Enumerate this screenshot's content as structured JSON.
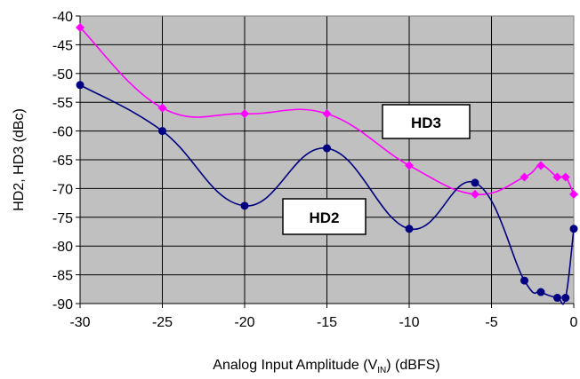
{
  "chart_data": {
    "type": "line",
    "title": "",
    "xlabel": "Analog Input Amplitude (V",
    "xlabel_sub": "IN",
    "xlabel_suffix": ") (dBFS)",
    "ylabel": "HD2, HD3 (dBc)",
    "xlim": [
      -30,
      0
    ],
    "ylim": [
      -90,
      -40
    ],
    "xticks": [
      -30,
      -25,
      -20,
      -15,
      -10,
      -5,
      0
    ],
    "yticks": [
      -40,
      -45,
      -50,
      -55,
      -60,
      -65,
      -70,
      -75,
      -80,
      -85,
      -90
    ],
    "grid": true,
    "plot_background": "#c0c0c0",
    "series": [
      {
        "name": "HD3",
        "color": "#ff00ff",
        "marker": "diamond",
        "x": [
          -30,
          -25,
          -20,
          -15,
          -10,
          -6,
          -3,
          -2,
          -1,
          -0.5,
          0
        ],
        "y": [
          -42,
          -56,
          -57,
          -57,
          -66,
          -71,
          -68,
          -66,
          -68,
          -68,
          -71
        ]
      },
      {
        "name": "HD2",
        "color": "#000080",
        "marker": "circle",
        "x": [
          -30,
          -25,
          -20,
          -15,
          -10,
          -6,
          -3,
          -2,
          -1,
          -0.5,
          0
        ],
        "y": [
          -52,
          -60,
          -73,
          -63,
          -77,
          -69,
          -86,
          -88,
          -89,
          -89,
          -77
        ]
      }
    ],
    "annotations": [
      {
        "text": "HD3",
        "series": "HD3"
      },
      {
        "text": "HD2",
        "series": "HD2"
      }
    ]
  }
}
